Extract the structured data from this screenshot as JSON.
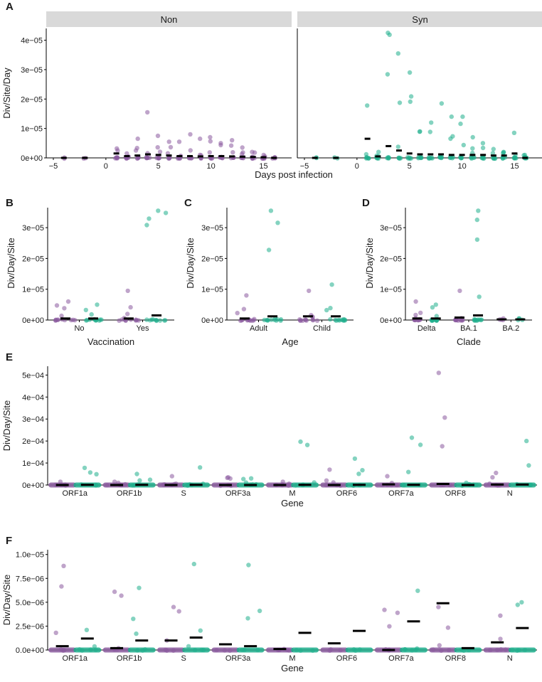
{
  "colors": {
    "non": "#8a5a9e",
    "syn": "#1fae8c",
    "strip": "#d9d9d9",
    "median": "#000000"
  },
  "chart_data": [
    {
      "id": "A",
      "type": "scatter",
      "panel_letter": "A",
      "facets": [
        "Non",
        "Syn"
      ],
      "xlabel": "Days post infection",
      "ylabel": "Div/Site/Day",
      "xlim": [
        -5,
        17
      ],
      "ylim": [
        0,
        4.4e-05
      ],
      "xticks": [
        -5,
        0,
        5,
        10,
        15
      ],
      "xtick_labels": [
        "−5",
        "0",
        "5",
        "10",
        "15"
      ],
      "yticks": [
        0,
        1e-05,
        2e-05,
        3e-05,
        4e-05
      ],
      "ytick_labels": [
        "0e+00",
        "1e−05",
        "2e−05",
        "3e−05",
        "4e−05"
      ],
      "days": [
        -4,
        -2,
        1,
        2,
        3,
        4,
        5,
        6,
        7,
        8,
        9,
        10,
        11,
        12,
        13,
        14,
        15,
        16
      ],
      "series": [
        {
          "name": "Non",
          "medians": [
            0,
            0,
            1.5e-06,
            6e-07,
            8e-07,
            1.2e-06,
            1e-06,
            8e-07,
            6e-07,
            6e-07,
            5e-07,
            6e-07,
            6e-07,
            5e-07,
            4e-07,
            3e-07,
            2e-07,
            0
          ],
          "maxima": [
            0,
            0,
            3.2e-06,
            1.5e-06,
            6.5e-06,
            1.55e-05,
            7.5e-06,
            5.5e-06,
            5.5e-06,
            8e-06,
            6.5e-06,
            7e-06,
            5e-06,
            6e-06,
            3.5e-06,
            2e-06,
            1e-06,
            0
          ]
        },
        {
          "name": "Syn",
          "medians": [
            0,
            0,
            6.5e-06,
            5e-07,
            4e-06,
            2.5e-06,
            1.5e-06,
            1.2e-06,
            1.2e-06,
            1.2e-06,
            1e-06,
            1e-06,
            1e-06,
            1e-06,
            8e-07,
            8e-07,
            1.5e-06,
            0
          ],
          "maxima": [
            0,
            0,
            1.78e-05,
            2e-06,
            4.25e-05,
            3.55e-05,
            2.9e-05,
            9e-06,
            1.2e-05,
            1.85e-05,
            1.4e-05,
            1.4e-05,
            7e-06,
            5e-06,
            3e-06,
            2e-06,
            8.5e-06,
            1e-06
          ]
        }
      ]
    },
    {
      "id": "B",
      "type": "scatter",
      "panel_letter": "B",
      "categories": [
        "No",
        "Yes"
      ],
      "xlabel": "Vaccination",
      "ylabel": "Div/Day/Site",
      "ylim": [
        0,
        3.65e-05
      ],
      "yticks": [
        0,
        1e-05,
        2e-05,
        3e-05
      ],
      "ytick_labels": [
        "0e+00",
        "1e−05",
        "2e−05",
        "3e−05"
      ],
      "series": [
        {
          "name": "Non",
          "medians": [
            5e-07,
            5e-07
          ],
          "maxima": [
            6e-06,
            9.5e-06
          ]
        },
        {
          "name": "Syn",
          "medians": [
            5e-07,
            1.5e-06
          ],
          "maxima": [
            5e-06,
            3.55e-05
          ]
        }
      ]
    },
    {
      "id": "C",
      "type": "scatter",
      "panel_letter": "C",
      "categories": [
        "Adult",
        "Child"
      ],
      "xlabel": "Age",
      "ylabel": "Div/Day/Site",
      "ylim": [
        0,
        3.65e-05
      ],
      "yticks": [
        0,
        1e-05,
        2e-05,
        3e-05
      ],
      "ytick_labels": [
        "0e+00",
        "1e−05",
        "2e−05",
        "3e−05"
      ],
      "series": [
        {
          "name": "Non",
          "medians": [
            5e-07,
            1.2e-06
          ],
          "maxima": [
            8e-06,
            9.5e-06
          ]
        },
        {
          "name": "Syn",
          "medians": [
            1.2e-06,
            1.2e-06
          ],
          "maxima": [
            3.55e-05,
            1.15e-05
          ]
        }
      ]
    },
    {
      "id": "D",
      "type": "scatter",
      "panel_letter": "D",
      "categories": [
        "Delta",
        "BA.1",
        "BA.2"
      ],
      "xlabel": "Clade",
      "ylabel": "Div/Day/Site",
      "ylim": [
        0,
        3.65e-05
      ],
      "yticks": [
        0,
        1e-05,
        2e-05,
        3e-05
      ],
      "ytick_labels": [
        "0e+00",
        "1e−05",
        "2e−05",
        "3e−05"
      ],
      "series": [
        {
          "name": "Non",
          "medians": [
            5e-07,
            8e-07,
            2e-07
          ],
          "maxima": [
            6e-06,
            9.5e-06,
            5e-07
          ]
        },
        {
          "name": "Syn",
          "medians": [
            5e-07,
            1.5e-06,
            2e-07
          ],
          "maxima": [
            5e-06,
            3.55e-05,
            5e-07
          ]
        }
      ]
    },
    {
      "id": "E",
      "type": "scatter",
      "panel_letter": "E",
      "categories": [
        "ORF1a",
        "ORF1b",
        "S",
        "ORF3a",
        "M",
        "ORF6",
        "ORF7a",
        "ORF8",
        "N"
      ],
      "xlabel": "Gene",
      "ylabel": "Div/Day/Site",
      "ylim": [
        0,
        0.00054
      ],
      "yticks": [
        0,
        0.0001,
        0.0002,
        0.0003,
        0.0004,
        0.0005
      ],
      "ytick_labels": [
        "0e+00",
        "1e−04",
        "2e−04",
        "3e−04",
        "4e−04",
        "5e−04"
      ],
      "series": [
        {
          "name": "Non",
          "medians": [
            0,
            0,
            0,
            0,
            0,
            0,
            3e-06,
            5e-06,
            2e-06
          ],
          "maxima": [
            1.5e-05,
            1.5e-05,
            4e-05,
            3.5e-05,
            1.5e-05,
            7e-05,
            4e-05,
            0.00051,
            5.5e-05
          ]
        },
        {
          "name": "Syn",
          "medians": [
            1e-06,
            1e-06,
            1e-06,
            0,
            1e-06,
            1e-06,
            1e-06,
            0,
            2e-06
          ],
          "maxima": [
            7.8e-05,
            5e-05,
            8e-05,
            3e-05,
            0.000197,
            0.00012,
            0.000215,
            1e-05,
            0.0002
          ]
        }
      ]
    },
    {
      "id": "F",
      "type": "scatter",
      "panel_letter": "F",
      "categories": [
        "ORF1a",
        "ORF1b",
        "S",
        "ORF3a",
        "M",
        "ORF6",
        "ORF7a",
        "ORF8",
        "N"
      ],
      "xlabel": "Gene",
      "ylabel": "Div/Day/Site",
      "ylim": [
        0,
        1.05e-05
      ],
      "yticks": [
        0,
        2.5e-06,
        5e-06,
        7.5e-06,
        1e-05
      ],
      "ytick_labels": [
        "0.0e+00",
        "2.5e−06",
        "5.0e−06",
        "7.5e−06",
        "1.0e−05"
      ],
      "series": [
        {
          "name": "Non",
          "medians": [
            4e-07,
            2e-07,
            1e-06,
            6e-07,
            1e-07,
            7e-07,
            0,
            4.9e-06,
            8e-07
          ],
          "maxima": [
            8.8e-06,
            6.1e-06,
            4.5e-06,
            0,
            1e-07,
            0,
            4.2e-06,
            4.5e-06,
            3.6e-06
          ]
        },
        {
          "name": "Syn",
          "medians": [
            1.2e-06,
            1e-06,
            1.3e-06,
            4e-07,
            1.8e-06,
            2e-06,
            3e-06,
            2e-07,
            2.3e-06
          ],
          "maxima": [
            2.1e-06,
            6.5e-06,
            9e-06,
            8.9e-06,
            0,
            0,
            6.2e-06,
            0,
            5e-06
          ]
        }
      ]
    }
  ]
}
